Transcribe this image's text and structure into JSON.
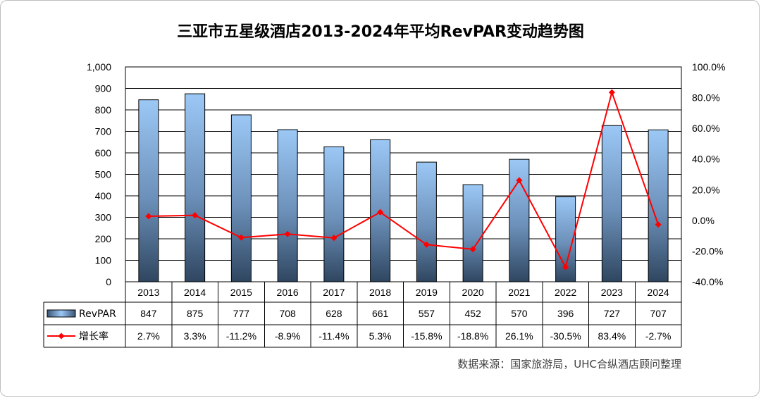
{
  "chart_data": {
    "type": "bar",
    "title": "三亚市五星级酒店2013-2024年平均RevPAR变动趋势图",
    "categories": [
      "2013",
      "2014",
      "2015",
      "2016",
      "2017",
      "2018",
      "2019",
      "2020",
      "2021",
      "2022",
      "2023",
      "2024"
    ],
    "series": [
      {
        "name": "RevPAR",
        "type": "bar",
        "axis": "left",
        "values": [
          847,
          875,
          777,
          708,
          628,
          661,
          557,
          452,
          570,
          396,
          727,
          707
        ],
        "color": "#5b9bd5"
      },
      {
        "name": "增长率",
        "type": "line",
        "axis": "right",
        "values": [
          2.7,
          3.3,
          -11.2,
          -8.9,
          -11.4,
          5.3,
          -15.8,
          -18.8,
          26.1,
          -30.5,
          83.4,
          -2.7
        ],
        "color": "#ff0000"
      }
    ],
    "y_left": {
      "ylim": [
        0,
        1000
      ],
      "ticks": [
        "0",
        "100",
        "200",
        "300",
        "400",
        "500",
        "600",
        "700",
        "800",
        "900",
        "1,000"
      ]
    },
    "y_right": {
      "ylim": [
        -40,
        100
      ],
      "ticks": [
        "-40.0%",
        "-20.0%",
        "0.0%",
        "20.0%",
        "40.0%",
        "60.0%",
        "80.0%",
        "100.0%"
      ]
    },
    "table": {
      "rows": [
        {
          "label": "RevPAR",
          "cells": [
            "847",
            "875",
            "777",
            "708",
            "628",
            "661",
            "557",
            "452",
            "570",
            "396",
            "727",
            "707"
          ]
        },
        {
          "label": "增长率",
          "cells": [
            "2.7%",
            "3.3%",
            "-11.2%",
            "-8.9%",
            "-11.4%",
            "5.3%",
            "-15.8%",
            "-18.8%",
            "26.1%",
            "-30.5%",
            "83.4%",
            "-2.7%"
          ]
        }
      ]
    },
    "grid": true
  },
  "source": "数据来源：国家旅游局，UHC合纵酒店顾问整理"
}
